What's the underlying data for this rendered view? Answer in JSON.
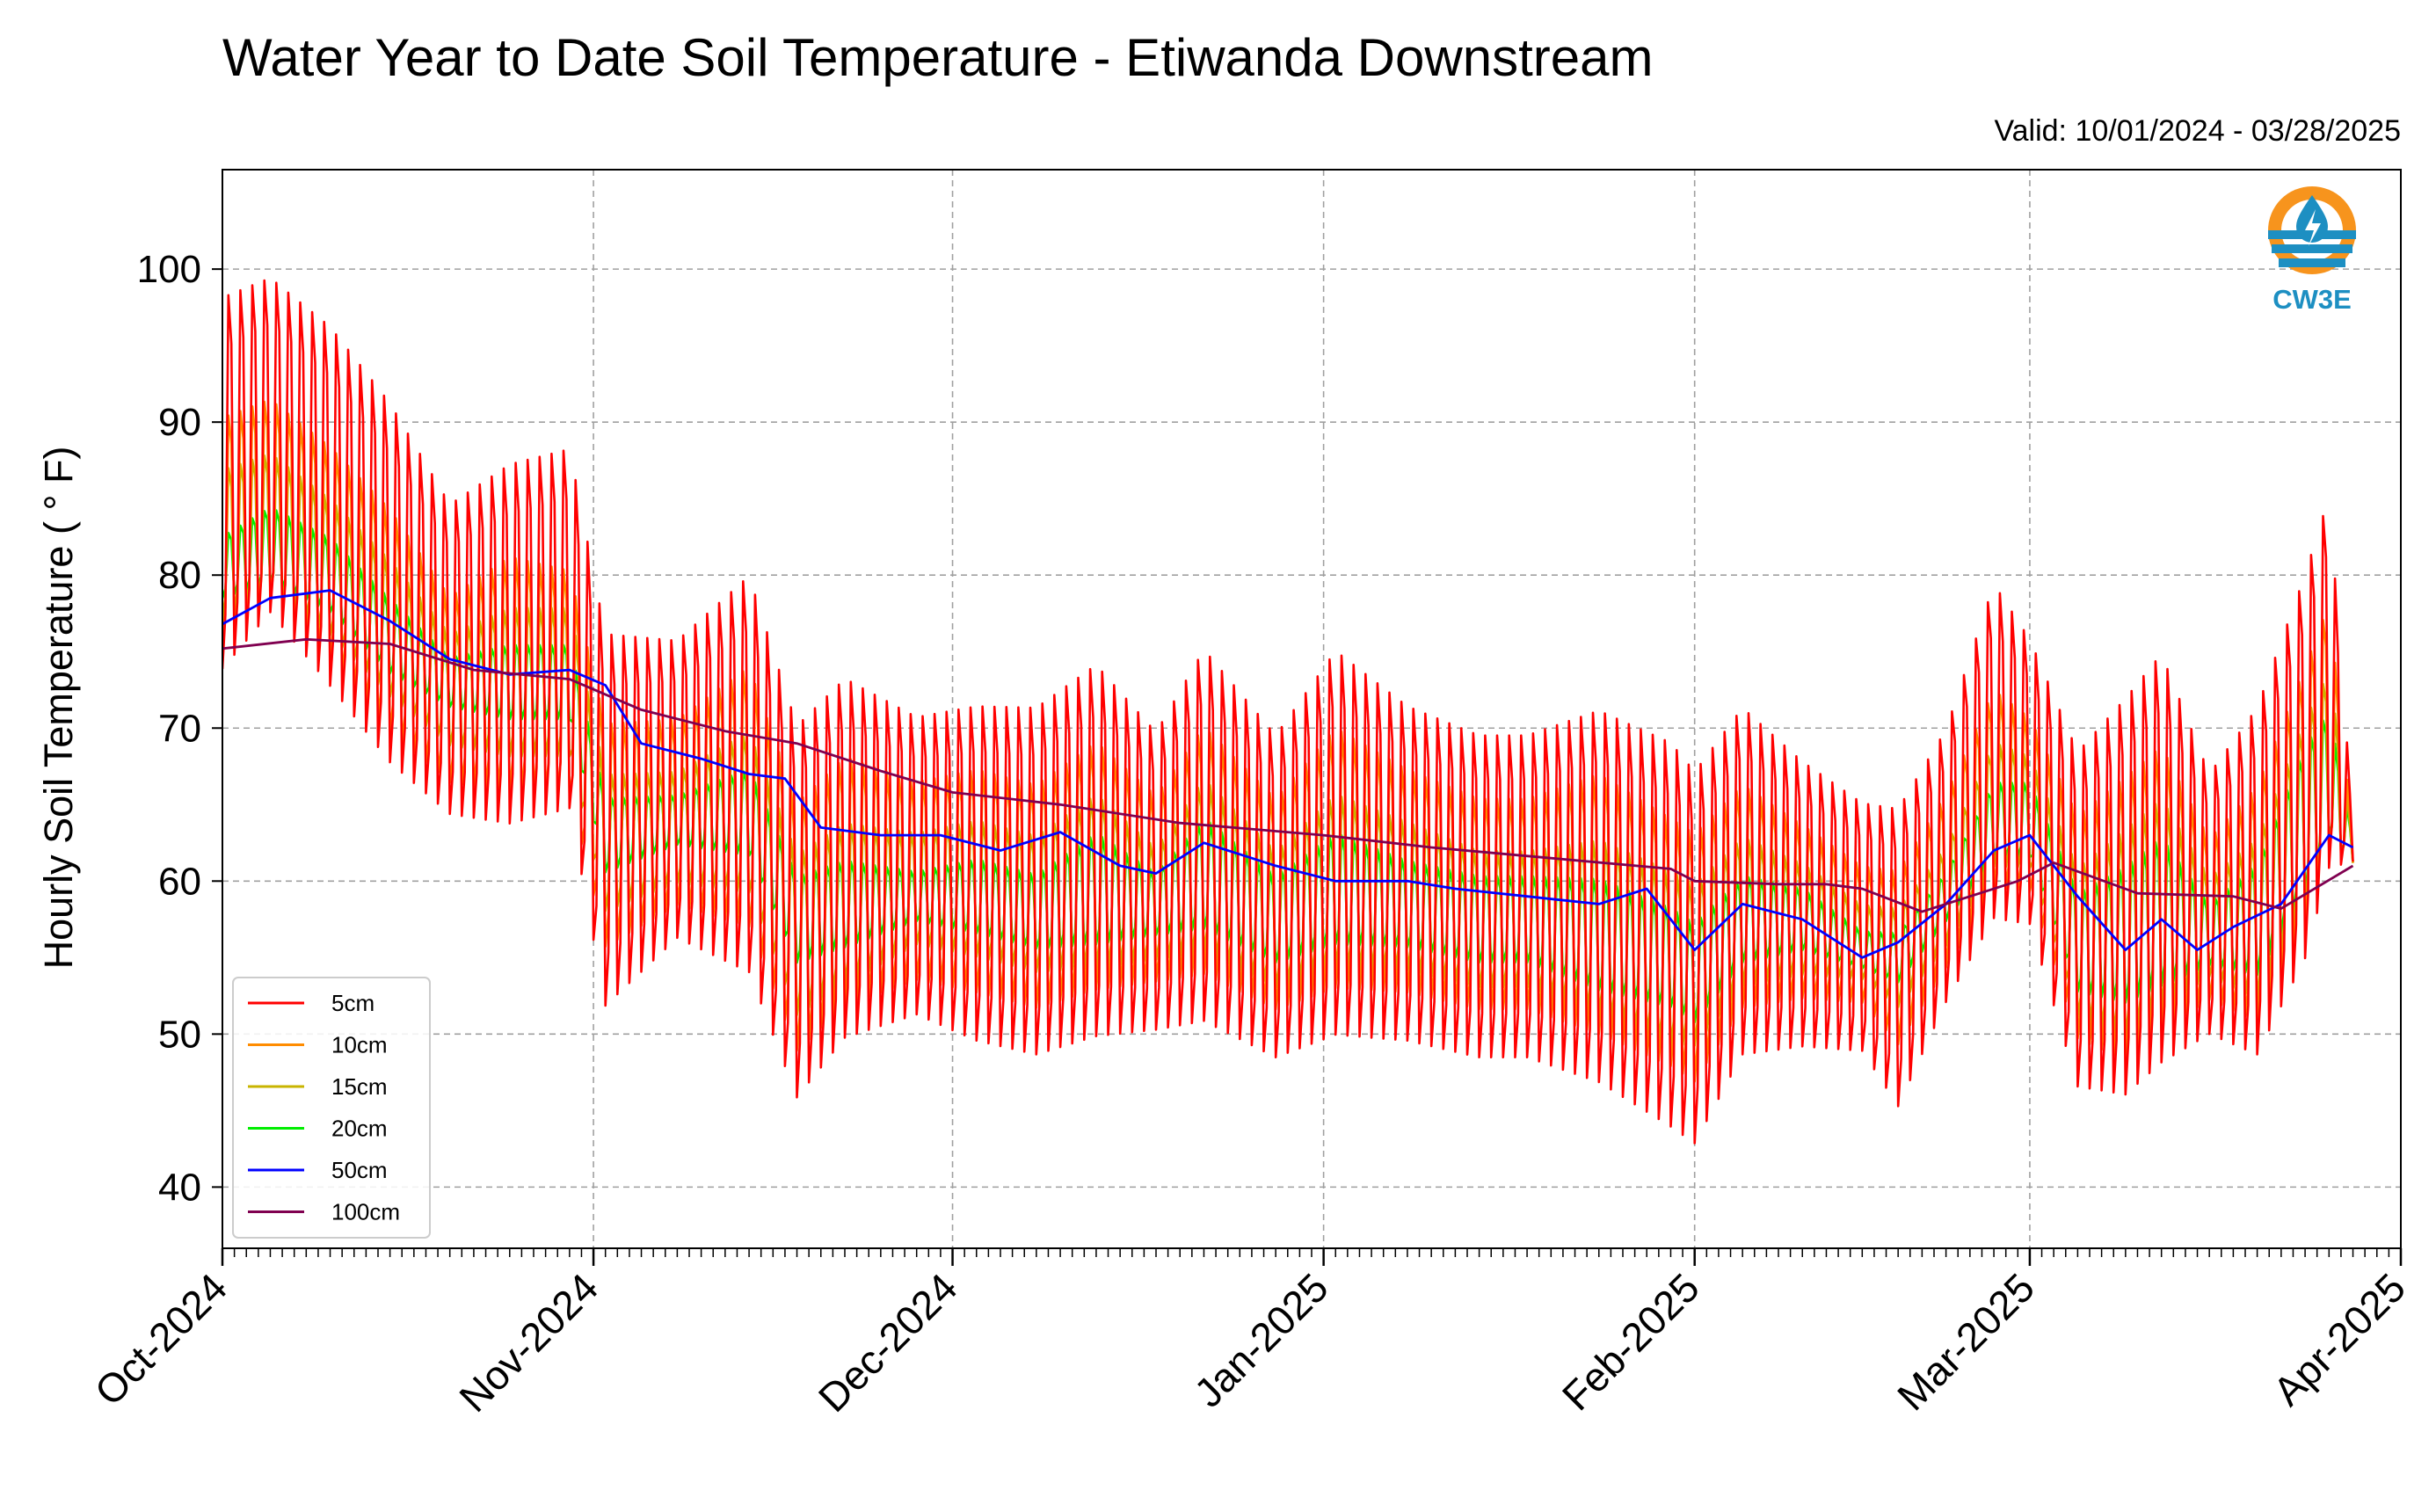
{
  "chart_data": {
    "type": "line",
    "title": "Water Year to Date Soil Temperature - Etiwanda Downstream",
    "subtitle": "Valid: 10/01/2024 - 03/28/2025",
    "ylabel": "Hourly Soil Temperature ( ° F)",
    "xlabel": "",
    "x_start": "2024-10-01",
    "x_end": "2025-04-01",
    "data_end": "2025-03-28",
    "xlim": [
      "2024-10-01",
      "2025-04-01"
    ],
    "ylim": [
      36,
      106.5
    ],
    "y_ticks": [
      40,
      50,
      60,
      70,
      80,
      90,
      100
    ],
    "x_ticks": [
      {
        "date": "2024-10-01",
        "label": "Oct-2024"
      },
      {
        "date": "2024-11-01",
        "label": "Nov-2024"
      },
      {
        "date": "2024-12-01",
        "label": "Dec-2024"
      },
      {
        "date": "2025-01-01",
        "label": "Jan-2025"
      },
      {
        "date": "2025-02-01",
        "label": "Feb-2025"
      },
      {
        "date": "2025-03-01",
        "label": "Mar-2025"
      },
      {
        "date": "2025-04-01",
        "label": "Apr-2025"
      }
    ],
    "grid": true,
    "legend_position": "lower-left",
    "daily_envelopes": [
      {
        "name": "5cm",
        "color": "#ff0000",
        "points": [
          [
            "2024-10-01",
            71,
            101
          ],
          [
            "2024-10-05",
            75,
            102
          ],
          [
            "2024-10-10",
            70,
            99
          ],
          [
            "2024-10-15",
            65,
            94
          ],
          [
            "2024-10-20",
            62,
            87
          ],
          [
            "2024-10-25",
            61,
            90
          ],
          [
            "2024-10-30",
            62,
            91
          ],
          [
            "2024-11-02",
            49,
            79
          ],
          [
            "2024-11-08",
            54,
            78
          ],
          [
            "2024-11-14",
            51,
            83
          ],
          [
            "2024-11-18",
            43,
            73
          ],
          [
            "2024-11-22",
            47,
            76
          ],
          [
            "2024-11-28",
            49,
            73
          ],
          [
            "2024-12-03",
            47,
            74
          ],
          [
            "2024-12-08",
            46,
            74
          ],
          [
            "2024-12-13",
            47,
            77
          ],
          [
            "2024-12-18",
            48,
            72
          ],
          [
            "2024-12-22",
            48,
            78
          ],
          [
            "2024-12-28",
            46,
            72
          ],
          [
            "2025-01-02",
            47,
            78
          ],
          [
            "2025-01-08",
            47,
            74
          ],
          [
            "2025-01-14",
            46,
            72
          ],
          [
            "2025-01-18",
            46,
            72
          ],
          [
            "2025-01-24",
            44,
            74
          ],
          [
            "2025-01-30",
            41,
            72
          ],
          [
            "2025-02-01",
            40,
            70
          ],
          [
            "2025-02-05",
            46,
            74
          ],
          [
            "2025-02-10",
            47,
            70
          ],
          [
            "2025-02-15",
            47,
            67
          ],
          [
            "2025-02-18",
            43,
            67
          ],
          [
            "2025-02-22",
            50,
            72
          ],
          [
            "2025-02-26",
            55,
            82
          ],
          [
            "2025-03-01",
            55,
            78
          ],
          [
            "2025-03-05",
            44,
            71
          ],
          [
            "2025-03-09",
            43,
            75
          ],
          [
            "2025-03-12",
            45,
            78
          ],
          [
            "2025-03-16",
            48,
            69
          ],
          [
            "2025-03-20",
            46,
            74
          ],
          [
            "2025-03-24",
            52,
            83
          ],
          [
            "2025-03-26",
            58,
            88
          ],
          [
            "2025-03-28",
            61,
            64
          ]
        ]
      },
      {
        "name": "10cm",
        "color": "#ff8c00",
        "points": [
          [
            "2024-10-01",
            74,
            92
          ],
          [
            "2024-10-05",
            77,
            93
          ],
          [
            "2024-10-10",
            73,
            90
          ],
          [
            "2024-10-15",
            68,
            86
          ],
          [
            "2024-10-20",
            65,
            80
          ],
          [
            "2024-10-25",
            64,
            83
          ],
          [
            "2024-10-30",
            64,
            82
          ],
          [
            "2024-11-02",
            54,
            72
          ],
          [
            "2024-11-08",
            57,
            72
          ],
          [
            "2024-11-14",
            55,
            76
          ],
          [
            "2024-11-18",
            47,
            67
          ],
          [
            "2024-11-22",
            50,
            70
          ],
          [
            "2024-11-28",
            52,
            68
          ],
          [
            "2024-12-03",
            51,
            69
          ],
          [
            "2024-12-08",
            50,
            68
          ],
          [
            "2024-12-13",
            51,
            71
          ],
          [
            "2024-12-18",
            52,
            67
          ],
          [
            "2024-12-22",
            52,
            72
          ],
          [
            "2024-12-28",
            50,
            67
          ],
          [
            "2025-01-02",
            51,
            72
          ],
          [
            "2025-01-08",
            51,
            69
          ],
          [
            "2025-01-14",
            50,
            67
          ],
          [
            "2025-01-18",
            50,
            67
          ],
          [
            "2025-01-24",
            48,
            69
          ],
          [
            "2025-01-30",
            46,
            66
          ],
          [
            "2025-02-01",
            45,
            65
          ],
          [
            "2025-02-05",
            50,
            68
          ],
          [
            "2025-02-10",
            51,
            65
          ],
          [
            "2025-02-15",
            51,
            62
          ],
          [
            "2025-02-18",
            48,
            62
          ],
          [
            "2025-02-22",
            53,
            67
          ],
          [
            "2025-02-26",
            58,
            74
          ],
          [
            "2025-03-01",
            58,
            72
          ],
          [
            "2025-03-05",
            48,
            66
          ],
          [
            "2025-03-09",
            46,
            69
          ],
          [
            "2025-03-12",
            48,
            71
          ],
          [
            "2025-03-16",
            51,
            64
          ],
          [
            "2025-03-20",
            49,
            68
          ],
          [
            "2025-03-24",
            55,
            76
          ],
          [
            "2025-03-26",
            60,
            80
          ],
          [
            "2025-03-28",
            61,
            63
          ]
        ]
      },
      {
        "name": "15cm",
        "color": "#c8b400",
        "points": [
          [
            "2024-10-01",
            76,
            88
          ],
          [
            "2024-10-05",
            78,
            89
          ],
          [
            "2024-10-10",
            75,
            86
          ],
          [
            "2024-10-15",
            71,
            82
          ],
          [
            "2024-10-20",
            68,
            77
          ],
          [
            "2024-10-25",
            67,
            79
          ],
          [
            "2024-10-30",
            67,
            79
          ],
          [
            "2024-11-02",
            57,
            68
          ],
          [
            "2024-11-08",
            59,
            68
          ],
          [
            "2024-11-14",
            58,
            71
          ],
          [
            "2024-11-18",
            50,
            63
          ],
          [
            "2024-11-22",
            52,
            65
          ],
          [
            "2024-11-28",
            55,
            64
          ],
          [
            "2024-12-03",
            54,
            65
          ],
          [
            "2024-12-08",
            53,
            64
          ],
          [
            "2024-12-13",
            53,
            67
          ],
          [
            "2024-12-18",
            54,
            63
          ],
          [
            "2024-12-22",
            54,
            68
          ],
          [
            "2024-12-28",
            52,
            63
          ],
          [
            "2025-01-02",
            53,
            67
          ],
          [
            "2025-01-08",
            53,
            65
          ],
          [
            "2025-01-14",
            52,
            63
          ],
          [
            "2025-01-18",
            52,
            63
          ],
          [
            "2025-01-24",
            50,
            64
          ],
          [
            "2025-01-30",
            48,
            62
          ],
          [
            "2025-02-01",
            48,
            61
          ],
          [
            "2025-02-05",
            52,
            64
          ],
          [
            "2025-02-10",
            53,
            62
          ],
          [
            "2025-02-15",
            53,
            59
          ],
          [
            "2025-02-18",
            51,
            59
          ],
          [
            "2025-02-22",
            55,
            63
          ],
          [
            "2025-02-26",
            60,
            70
          ],
          [
            "2025-03-01",
            60,
            69
          ],
          [
            "2025-03-05",
            50,
            62
          ],
          [
            "2025-03-09",
            48,
            65
          ],
          [
            "2025-03-12",
            50,
            67
          ],
          [
            "2025-03-16",
            53,
            61
          ],
          [
            "2025-03-20",
            51,
            64
          ],
          [
            "2025-03-24",
            57,
            72
          ],
          [
            "2025-03-26",
            61,
            75
          ],
          [
            "2025-03-28",
            61,
            63
          ]
        ]
      },
      {
        "name": "20cm",
        "color": "#00ee00",
        "points": [
          [
            "2024-10-01",
            78,
            83
          ],
          [
            "2024-10-05",
            79,
            85
          ],
          [
            "2024-10-10",
            77,
            83
          ],
          [
            "2024-10-15",
            73,
            79
          ],
          [
            "2024-10-20",
            71,
            75
          ],
          [
            "2024-10-25",
            70,
            76
          ],
          [
            "2024-10-30",
            70,
            76
          ],
          [
            "2024-11-02",
            60,
            66
          ],
          [
            "2024-11-08",
            62,
            66
          ],
          [
            "2024-11-14",
            61,
            68
          ],
          [
            "2024-11-18",
            54,
            61
          ],
          [
            "2024-11-22",
            55,
            62
          ],
          [
            "2024-11-28",
            57,
            61
          ],
          [
            "2024-12-03",
            56,
            62
          ],
          [
            "2024-12-08",
            55,
            61
          ],
          [
            "2024-12-13",
            55,
            64
          ],
          [
            "2024-12-18",
            56,
            61
          ],
          [
            "2024-12-22",
            56,
            65
          ],
          [
            "2024-12-28",
            54,
            61
          ],
          [
            "2025-01-02",
            55,
            64
          ],
          [
            "2025-01-08",
            55,
            62
          ],
          [
            "2025-01-14",
            54,
            61
          ],
          [
            "2025-01-18",
            54,
            61
          ],
          [
            "2025-01-24",
            52,
            61
          ],
          [
            "2025-01-30",
            51,
            59
          ],
          [
            "2025-02-01",
            50,
            58
          ],
          [
            "2025-02-05",
            54,
            61
          ],
          [
            "2025-02-10",
            55,
            60
          ],
          [
            "2025-02-15",
            54,
            57
          ],
          [
            "2025-02-18",
            53,
            57
          ],
          [
            "2025-02-22",
            57,
            61
          ],
          [
            "2025-02-26",
            61,
            67
          ],
          [
            "2025-03-01",
            61,
            67
          ],
          [
            "2025-03-05",
            52,
            60
          ],
          [
            "2025-03-09",
            51,
            62
          ],
          [
            "2025-03-12",
            52,
            64
          ],
          [
            "2025-03-16",
            54,
            59
          ],
          [
            "2025-03-20",
            53,
            62
          ],
          [
            "2025-03-24",
            58,
            70
          ],
          [
            "2025-03-26",
            62,
            72
          ],
          [
            "2025-03-28",
            61,
            63
          ]
        ]
      }
    ],
    "series": [
      {
        "name": "50cm",
        "color": "#0000ff",
        "x": [
          "2024-10-01",
          "2024-10-05",
          "2024-10-10",
          "2024-10-15",
          "2024-10-20",
          "2024-10-25",
          "2024-10-30",
          "2024-11-02",
          "2024-11-05",
          "2024-11-10",
          "2024-11-14",
          "2024-11-17",
          "2024-11-20",
          "2024-11-25",
          "2024-11-30",
          "2024-12-05",
          "2024-12-10",
          "2024-12-15",
          "2024-12-18",
          "2024-12-22",
          "2024-12-28",
          "2025-01-02",
          "2025-01-08",
          "2025-01-12",
          "2025-01-18",
          "2025-01-24",
          "2025-01-28",
          "2025-02-01",
          "2025-02-05",
          "2025-02-10",
          "2025-02-15",
          "2025-02-18",
          "2025-02-22",
          "2025-02-26",
          "2025-03-01",
          "2025-03-05",
          "2025-03-09",
          "2025-03-12",
          "2025-03-15",
          "2025-03-18",
          "2025-03-22",
          "2025-03-26",
          "2025-03-28"
        ],
        "y": [
          76.8,
          78.5,
          79,
          77,
          74.5,
          73.5,
          73.8,
          72.8,
          69,
          68,
          67,
          66.7,
          63.5,
          63,
          63,
          62,
          63.2,
          61,
          60.5,
          62.5,
          61,
          60,
          60,
          59.5,
          59,
          58.5,
          59.5,
          55.5,
          58.5,
          57.5,
          55,
          56,
          58.5,
          62,
          63,
          59,
          55.5,
          57.5,
          55.5,
          57,
          58.5,
          63,
          62.2
        ]
      },
      {
        "name": "100cm",
        "color": "#800050",
        "x": [
          "2024-10-01",
          "2024-10-08",
          "2024-10-15",
          "2024-10-22",
          "2024-10-30",
          "2024-11-05",
          "2024-11-12",
          "2024-11-18",
          "2024-11-25",
          "2024-12-01",
          "2024-12-10",
          "2024-12-20",
          "2025-01-01",
          "2025-01-10",
          "2025-01-20",
          "2025-01-30",
          "2025-02-01",
          "2025-02-08",
          "2025-02-12",
          "2025-02-15",
          "2025-02-20",
          "2025-02-28",
          "2025-03-03",
          "2025-03-10",
          "2025-03-18",
          "2025-03-22",
          "2025-03-28"
        ],
        "y": [
          75.2,
          75.8,
          75.5,
          73.8,
          73.2,
          71.2,
          69.8,
          69,
          67.2,
          65.8,
          65,
          63.8,
          63,
          62.2,
          61.5,
          60.8,
          60,
          59.8,
          59.8,
          59.5,
          58,
          60,
          61.2,
          59.2,
          59,
          58.2,
          61
        ]
      }
    ]
  },
  "logo": {
    "text": "CW3E"
  }
}
